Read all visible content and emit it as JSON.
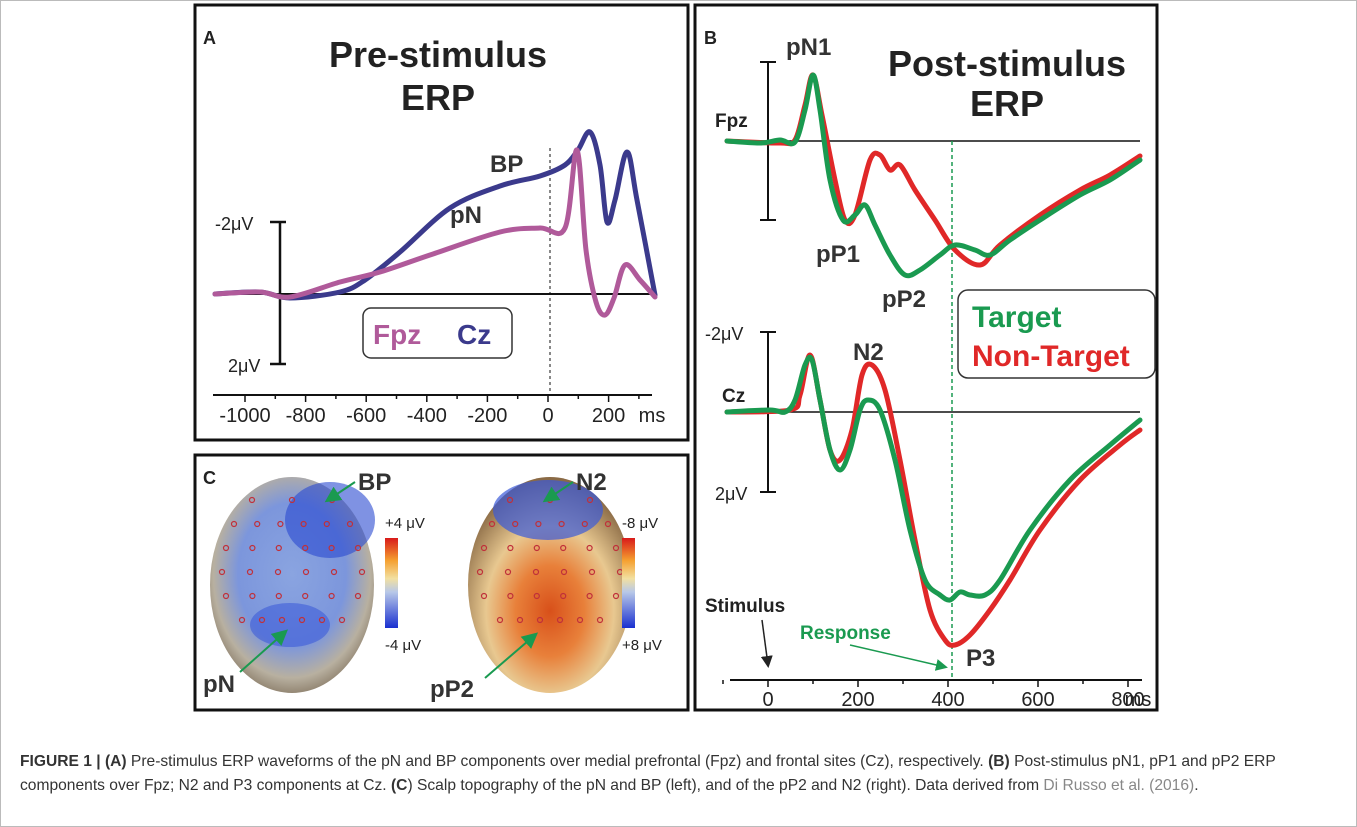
{
  "panels": {
    "a": {
      "label": "A",
      "title": [
        "Pre-stimulus",
        "ERP"
      ],
      "curve_labels": [
        "BP",
        "pN"
      ],
      "scale_labels": [
        "-2μV",
        "2μV"
      ],
      "legend": [
        "Fpz",
        "Cz"
      ],
      "x_ticks": [
        "-1000",
        "-800",
        "-600",
        "-400",
        "-200",
        "0",
        "200"
      ],
      "x_unit": "ms"
    },
    "b": {
      "label": "B",
      "title": [
        "Post-stimulus",
        "ERP"
      ],
      "fpz": "Fpz",
      "cz": "Cz",
      "components": [
        "pN1",
        "pP1",
        "pP2",
        "N2",
        "P3"
      ],
      "scale_labels": [
        "-2μV",
        "2μV"
      ],
      "legend": [
        "Target",
        "Non-Target"
      ],
      "events": [
        "Stimulus",
        "Response"
      ],
      "x_ticks": [
        "0",
        "200",
        "400",
        "600",
        "800"
      ],
      "x_unit": "ms"
    },
    "c": {
      "label": "C",
      "left": [
        "BP",
        "pN"
      ],
      "right": [
        "N2",
        "pP2"
      ],
      "left_scale": [
        "+4 μV",
        "-4 μV"
      ],
      "right_scale": [
        "-8 μV",
        "+8 μV"
      ]
    }
  },
  "caption": [
    {
      "text": "FIGURE 1 | (A)",
      "style": "bold"
    },
    {
      "text": " Pre-stimulus ERP waveforms of the pN and BP components over medial prefrontal (Fpz) and frontal sites (Cz), respectively. ",
      "style": "normal"
    },
    {
      "text": "(B)",
      "style": "bold"
    },
    {
      "text": " Post-stimulus pN1, pP1 and pP2 ERP components over Fpz; N2 and P3 components at Cz. ",
      "style": "normal"
    },
    {
      "text": "(C",
      "style": "bold"
    },
    {
      "text": ") Scalp topography of the pN and BP (left), and of the pP2 and N2 (right). Data derived from ",
      "style": "normal"
    },
    {
      "text": "Di Russo et al. (2016)",
      "style": "link"
    },
    {
      "text": ".",
      "style": "normal"
    }
  ]
}
